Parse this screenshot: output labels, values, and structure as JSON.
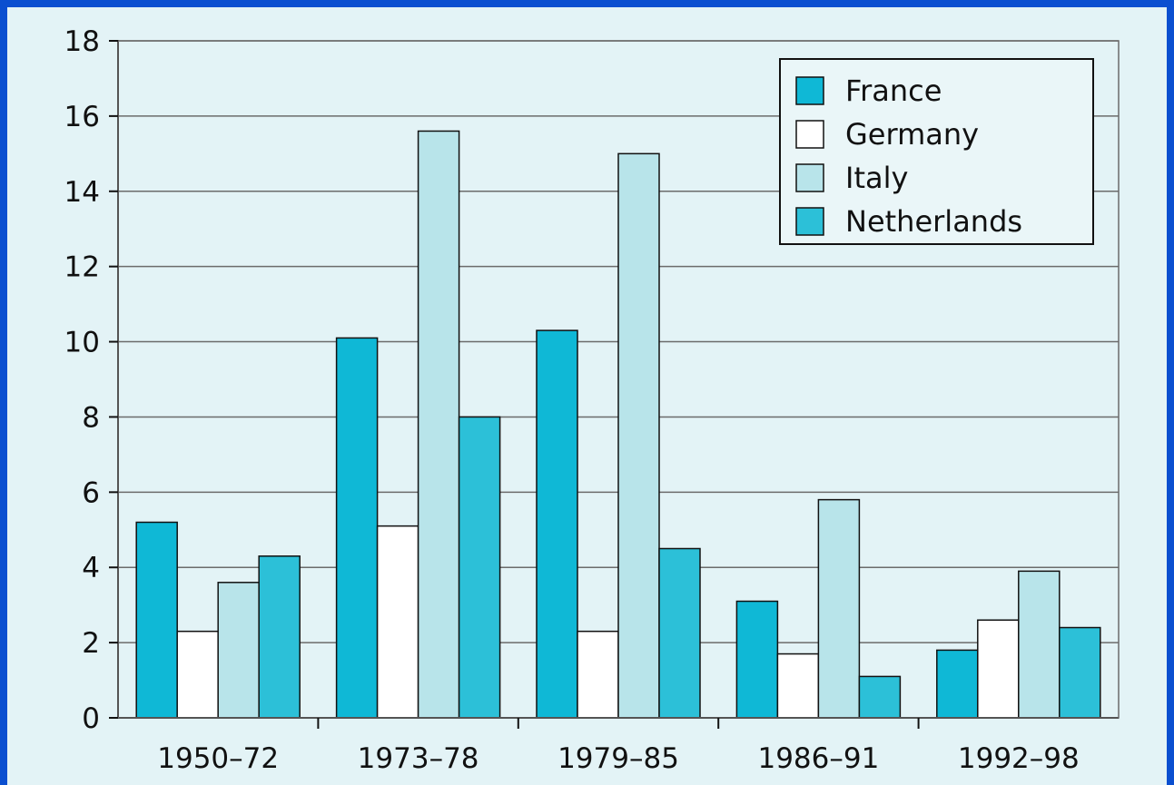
{
  "chart_data": {
    "type": "bar",
    "title": "",
    "xlabel": "",
    "ylabel": "",
    "categories": [
      "1950–72",
      "1973–78",
      "1979–85",
      "1986–91",
      "1992–98"
    ],
    "series": [
      {
        "name": "France",
        "color": "#0fb8d6",
        "values": [
          5.2,
          10.1,
          10.3,
          3.1,
          1.8
        ]
      },
      {
        "name": "Germany",
        "color": "#ffffff",
        "values": [
          2.3,
          5.1,
          2.3,
          1.7,
          2.6
        ]
      },
      {
        "name": "Italy",
        "color": "#b8e4ea",
        "values": [
          3.6,
          15.6,
          15.0,
          5.8,
          3.9
        ]
      },
      {
        "name": "Netherlands",
        "color": "#2cc0d8",
        "values": [
          4.3,
          8.0,
          4.5,
          1.1,
          2.4
        ]
      }
    ],
    "ylim": [
      0,
      18
    ],
    "yticks": [
      0,
      2,
      4,
      6,
      8,
      10,
      12,
      14,
      16,
      18
    ],
    "grid": true,
    "legend_position": "top-right"
  }
}
